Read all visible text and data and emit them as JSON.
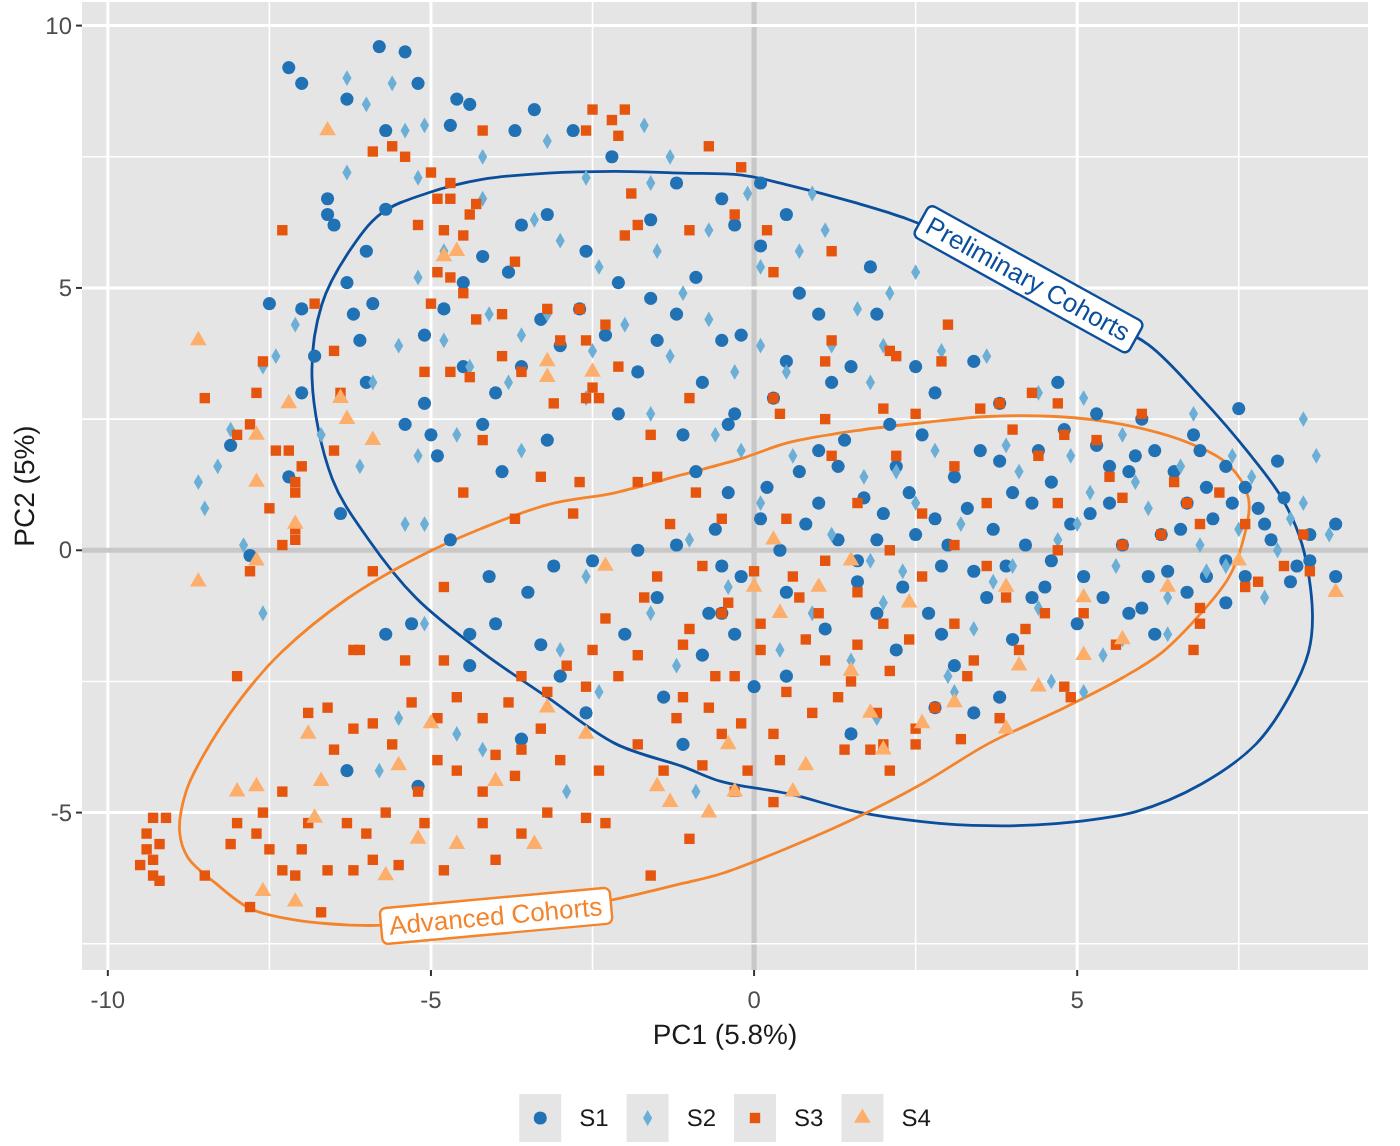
{
  "chart_data": {
    "type": "scatter",
    "xlabel": "PC1 (5.8%)",
    "ylabel": "PC2 (5%)",
    "xlim": [
      -10.4,
      9.5
    ],
    "ylim": [
      -8.0,
      10.45
    ],
    "xticks": [
      -10,
      {
        "value": -7.5,
        "label": null
      },
      -5,
      {
        "value": -2.5,
        "label": null
      },
      0,
      {
        "value": 2.5,
        "label": null
      },
      5,
      {
        "value": 7.5,
        "label": null
      }
    ],
    "yticks": [
      {
        "value": -7.5,
        "label": null
      },
      -5,
      {
        "value": -2.5,
        "label": null
      },
      0,
      {
        "value": 2.5,
        "label": null
      },
      5,
      {
        "value": 7.5,
        "label": null
      },
      10
    ],
    "grid": true,
    "legend": "bottom",
    "series": [
      {
        "name": "S1",
        "marker": "circle",
        "color": "#2171b5",
        "x": [
          -7.2,
          -7.0,
          -5.8,
          -5.4,
          -5.2,
          -6.3,
          -4.6,
          -4.4,
          -3.4,
          -4.7,
          -3.7,
          -2.8,
          -5.7,
          -6.6,
          -6.6,
          -6.5,
          -6.0,
          -5.7,
          -7.5,
          -7.0,
          -6.2,
          -5.9,
          -6.0,
          -6.1,
          -6.8,
          -8.1,
          -7.2,
          -7.0,
          -6.3,
          -5.0,
          -5.4,
          -5.1,
          -4.9,
          -4.2,
          -3.9,
          -5.1,
          -4.8,
          -4.5,
          -4.0,
          -3.6,
          -3.3,
          -3.0,
          -2.7,
          -2.3,
          -1.8,
          -1.5,
          -1.2,
          -0.8,
          -0.5,
          -0.4,
          -1.1,
          -2.1,
          -3.2,
          -3.6,
          -3.2,
          -2.2,
          -1.6,
          -1.2,
          -0.9,
          -0.5,
          -0.3,
          -4.2,
          -3.8,
          -2.6,
          -2.1,
          -1.6,
          -4.5,
          0.1,
          0.5,
          0.1,
          1.8,
          1.0,
          1.9,
          1.5,
          2.5,
          3.4,
          4.7,
          6.0,
          7.5,
          6.8,
          8.1,
          0.5,
          -0.3,
          0.3,
          1.2,
          2.8,
          3.8,
          5.3,
          6.2,
          2.1,
          0.7,
          -0.2,
          9.0,
          9.0,
          8.6,
          8.3,
          7.3,
          7.0,
          5.8,
          6.2,
          3.8,
          3.4,
          2.8,
          1.5,
          0.5,
          -0.5,
          -6.4,
          -7.8,
          -4.7,
          -5.7,
          -5.3,
          -4.1,
          -3.5,
          -3.1,
          -2.5,
          -1.8,
          -4.4,
          -4.0,
          -3.3,
          -3.0,
          -6.3,
          -5.2,
          -2.0,
          -1.4,
          -1.1,
          -2.6,
          -3.6,
          -0.7,
          -0.5,
          -4.4,
          0.2,
          0.8,
          1.3,
          1.9,
          2.4,
          2.9,
          3.3,
          3.8,
          4.2,
          4.6,
          5.1,
          5.5,
          5.9,
          6.3,
          6.7,
          7.1,
          7.6,
          8.0,
          8.4,
          -0.6,
          -0.9,
          0.5,
          1.1,
          1.6,
          2.2,
          2.7,
          3.1,
          3.6,
          4.0,
          4.5,
          5.0,
          5.3,
          6.0,
          6.5,
          7.3,
          -0.3,
          0.0,
          1.4,
          2.6,
          3.5,
          -1.5,
          -0.8,
          7.8,
          6.9,
          4.8,
          2.0,
          3.0,
          4.3,
          5.7,
          1.0,
          0.4,
          1.0,
          1.6,
          2.2,
          2.8,
          3.4,
          4.0,
          4.6,
          5.2,
          5.8,
          6.4,
          7.0,
          7.6,
          8.2,
          0.7,
          1.3,
          1.9,
          2.5,
          3.1,
          3.7,
          4.3,
          4.9,
          5.5,
          6.1,
          6.7,
          7.3,
          7.9,
          -0.2,
          0.1,
          1.7,
          2.3,
          3.9,
          4.4,
          5.4,
          6.6,
          7.4,
          8.6,
          -1.2,
          -0.4,
          2.9
        ],
        "values": [
          9.2,
          8.9,
          9.6,
          9.5,
          8.9,
          8.6,
          8.6,
          8.5,
          8.4,
          8.1,
          8.0,
          8.0,
          8.0,
          6.7,
          6.4,
          6.2,
          5.7,
          6.5,
          4.7,
          4.6,
          4.5,
          4.7,
          3.2,
          4.0,
          3.7,
          2.0,
          1.4,
          3.0,
          5.1,
          2.2,
          2.4,
          2.8,
          1.8,
          2.4,
          1.5,
          4.1,
          4.6,
          3.5,
          3.0,
          3.5,
          4.4,
          3.9,
          4.6,
          4.1,
          3.4,
          4.0,
          4.5,
          3.2,
          4.0,
          2.4,
          2.2,
          2.6,
          2.1,
          6.2,
          6.4,
          7.5,
          6.3,
          7.0,
          5.2,
          6.7,
          6.2,
          5.6,
          5.3,
          5.7,
          5.1,
          4.8,
          5.1,
          7.0,
          6.4,
          5.8,
          5.4,
          4.5,
          4.5,
          3.5,
          3.5,
          3.6,
          3.2,
          2.5,
          2.7,
          2.2,
          1.7,
          3.6,
          2.6,
          2.9,
          3.2,
          3.0,
          2.8,
          2.6,
          1.9,
          2.4,
          4.9,
          4.1,
          0.5,
          -0.5,
          -0.2,
          -0.6,
          -1.0,
          -0.5,
          -1.2,
          -1.6,
          -2.8,
          -3.1,
          -3.0,
          -3.5,
          -2.4,
          -1.2,
          0.7,
          -0.1,
          0.2,
          -1.6,
          -1.4,
          -0.5,
          -0.8,
          -0.3,
          -0.2,
          0.0,
          -2.2,
          -1.4,
          -1.8,
          -2.4,
          -4.2,
          -4.5,
          -1.6,
          -2.8,
          -3.7,
          -3.1,
          -3.6,
          -1.2,
          -0.3,
          -1.6,
          1.2,
          0.5,
          1.6,
          0.2,
          1.1,
          -0.3,
          0.8,
          1.7,
          0.1,
          1.3,
          -0.5,
          0.9,
          1.8,
          0.3,
          -0.8,
          0.6,
          1.2,
          0.2,
          -0.3,
          0.4,
          1.5,
          -0.8,
          -1.5,
          -0.6,
          -1.9,
          -1.2,
          -2.2,
          -0.9,
          -1.7,
          -0.7,
          -1.4,
          2.0,
          -1.1,
          1.5,
          -0.2,
          -1.6,
          -2.6,
          2.1,
          2.2,
          1.9,
          -0.9,
          -2.0,
          0.8,
          1.9,
          2.3,
          0.7,
          0.1,
          0.9,
          0.1,
          0.9,
          0.0,
          1.9,
          -0.2,
          1.6,
          0.6,
          -0.4,
          1.1,
          -0.2,
          0.7,
          1.5,
          -0.4,
          1.2,
          -0.5,
          1.0,
          1.5,
          0.2,
          -1.2,
          0.3,
          1.4,
          0.4,
          -0.9,
          0.5,
          1.6,
          -0.5,
          0.9,
          1.6,
          0.5,
          -0.5,
          0.6,
          1.0,
          -0.7,
          -0.3,
          1.9,
          -0.9,
          0.4,
          0.9,
          0.3,
          0.1,
          1.1,
          -1.6
        ]
      },
      {
        "name": "S2",
        "marker": "diamond",
        "color": "#6baed6",
        "x": [
          -6.3,
          -5.6,
          -6.0,
          -5.4,
          -5.1,
          -6.3,
          -8.6,
          -8.3,
          -8.1,
          -7.4,
          -7.1,
          -5.2,
          -4.2,
          -3.2,
          -1.7,
          -1.3,
          -2.6,
          -1.6,
          -4.2,
          -3.4,
          -3.0,
          -2.4,
          -1.5,
          -0.7,
          -1.1,
          -4.8,
          -5.2,
          -5.5,
          -4.8,
          -4.1,
          -3.6,
          -3.2,
          -2.5,
          -2.0,
          -1.3,
          -0.7,
          -0.3,
          -4.4,
          -3.8,
          -2.6,
          -1.6,
          -0.6,
          -4.6,
          -3.6,
          -5.2,
          -5.9,
          -6.7,
          -6.1,
          -7.6,
          -8.5,
          -7.9,
          -7.6,
          -5.4,
          -5.1,
          -5.1,
          -5.5,
          -5.8,
          -4.6,
          -4.2,
          -3.0,
          -2.6,
          -2.4,
          -1.6,
          -1.2,
          -0.9,
          -2.9,
          -0.1,
          0.9,
          1.1,
          0.1,
          0.7,
          1.6,
          2.5,
          2.1,
          2.9,
          3.6,
          4.4,
          5.1,
          5.7,
          6.8,
          7.4,
          8.7,
          8.5,
          0.5,
          1.8,
          0.1,
          1.2,
          2.0,
          8.9,
          8.5,
          8.1,
          5.1,
          4.6,
          3.1,
          1.9,
          6.4,
          5.7,
          7.3,
          0.1,
          0.6,
          1.2,
          1.7,
          2.3,
          2.8,
          3.2,
          3.7,
          4.1,
          4.7,
          5.2,
          5.6,
          6.1,
          6.6,
          7.0,
          7.5,
          7.9,
          8.3,
          -0.4,
          0.9,
          1.5,
          2.0,
          2.5,
          3.4,
          3.9,
          4.4,
          4.9,
          5.4,
          5.9,
          6.4,
          6.9,
          7.7,
          -1.0,
          -0.2,
          1.8,
          3.0,
          4.0,
          2.2,
          0.4,
          5.0
        ],
        "values": [
          9.0,
          8.9,
          8.5,
          8.0,
          8.1,
          7.2,
          1.3,
          1.6,
          2.3,
          3.7,
          4.3,
          7.1,
          7.5,
          7.8,
          8.1,
          7.5,
          7.1,
          7.0,
          6.7,
          6.3,
          5.9,
          5.4,
          5.7,
          6.1,
          4.9,
          5.7,
          5.2,
          3.9,
          4.0,
          4.5,
          4.1,
          4.5,
          3.8,
          4.3,
          3.7,
          4.4,
          3.4,
          3.5,
          3.2,
          2.9,
          2.6,
          2.2,
          2.2,
          1.9,
          1.8,
          3.2,
          2.2,
          1.6,
          3.5,
          0.8,
          0.1,
          -1.2,
          0.5,
          0.5,
          -1.4,
          -3.2,
          -4.2,
          -3.5,
          -3.8,
          -1.9,
          -0.5,
          -2.7,
          -1.2,
          -2.2,
          -4.6,
          -4.6,
          6.8,
          6.8,
          6.1,
          5.4,
          5.7,
          4.6,
          5.3,
          4.9,
          3.8,
          3.7,
          3.0,
          2.9,
          2.2,
          2.6,
          1.8,
          1.8,
          2.5,
          3.4,
          3.2,
          3.9,
          3.9,
          3.9,
          0.3,
          0.9,
          0.0,
          -2.7,
          -2.5,
          -2.7,
          -3.2,
          -1.6,
          -1.7,
          -0.3,
          0.9,
          1.8,
          0.3,
          1.4,
          -0.4,
          1.9,
          0.5,
          -0.6,
          1.5,
          0.2,
          1.1,
          -0.3,
          0.8,
          1.6,
          -0.4,
          0.4,
          -0.9,
          0.6,
          -0.7,
          -1.2,
          -2.1,
          -1.0,
          0.9,
          -1.5,
          2.0,
          -1.1,
          1.8,
          -2.0,
          1.3,
          -0.9,
          0.1,
          1.4,
          0.2,
          1.9,
          -0.2,
          -2.4,
          -0.3,
          1.5,
          -1.9,
          0.5
        ]
      },
      {
        "name": "S3",
        "marker": "square",
        "color": "#e6550d",
        "x": [
          -2.5,
          -2.0,
          -2.2,
          -2.1,
          -0.7,
          -2.6,
          -4.2,
          -5.9,
          -5.6,
          -5.4,
          -5.0,
          -4.7,
          -4.9,
          -4.7,
          -4.3,
          -4.4,
          -4.8,
          -4.5,
          -5.2,
          -7.3,
          -1.9,
          -1.8,
          -2.0,
          -1.0,
          -3.7,
          -4.9,
          -4.7,
          -4.5,
          -5.0,
          -6.8,
          -4.3,
          -3.9,
          -3.2,
          -2.7,
          -2.3,
          -3.0,
          -2.6,
          -2.1,
          -3.9,
          -3.6,
          -5.1,
          -4.7,
          -4.4,
          -6.5,
          -7.6,
          -6.4,
          -7.7,
          -8.5,
          -7.8,
          -8.0,
          -7.4,
          -7.2,
          -6.5,
          -7.0,
          -7.1,
          -7.1,
          -4.2,
          -3.1,
          -2.6,
          -2.4,
          -2.5,
          -1.6,
          -3.3,
          -2.7,
          -1.0,
          -1.8,
          -1.5,
          -0.9,
          -4.5,
          -0.2,
          -0.3,
          0.2,
          0.3,
          1.2,
          3.0,
          1.2,
          1.1,
          2.9,
          0.3,
          0.4,
          1.1,
          2.0,
          2.1,
          2.2,
          2.5,
          3.5,
          3.8,
          4.3,
          4.7,
          4.8,
          4.0,
          6.0,
          2.2,
          3.1,
          1.2,
          4.4,
          5.3,
          6.5,
          7.2,
          5.5,
          -7.5,
          -7.8,
          -8.0,
          -5.9,
          -7.3,
          -7.1,
          -7.1,
          -6.2,
          -6.1,
          -5.4,
          -4.8,
          -4.8,
          -3.7,
          -2.8,
          -6.9,
          -6.6,
          -6.2,
          -5.9,
          -5.6,
          -6.5,
          -5.3,
          -4.9,
          -4.6,
          -4.2,
          -3.8,
          -3.6,
          -3.2,
          -2.9,
          -2.5,
          -2.3,
          -1.7,
          -1.5,
          -1.3,
          -2.1,
          -1.8,
          -1.4,
          -2.4,
          -3.0,
          -3.7,
          -4.2,
          -4.6,
          -5.2,
          -5.7,
          -6.0,
          -5.9,
          -5.5,
          -6.2,
          -6.3,
          -6.9,
          -7.3,
          -7.6,
          -7.7,
          -7.5,
          -7.3,
          -7.0,
          -7.1,
          -6.6,
          -6.7,
          -7.8,
          -8.1,
          -8.0,
          -8.5,
          -9.1,
          -9.3,
          -9.4,
          -9.4,
          -9.5,
          -9.3,
          -9.2,
          -9.2,
          -9.3,
          -4.0,
          -3.6,
          -3.2,
          -2.6,
          -2.3,
          -1.6,
          -1.0,
          -4.8,
          -4.2,
          -5.1,
          -0.8,
          -0.5,
          -1.1,
          -0.6,
          -1.1,
          -0.5,
          -0.8,
          -0.5,
          0.3,
          -0.3,
          -0.1,
          0.4,
          1.4,
          1.8,
          2.1,
          2.0,
          2.5,
          3.2,
          2.5,
          2.8,
          3.8,
          4.9,
          4.8,
          5.6,
          6.8,
          6.9,
          6.9,
          7.6,
          7.8,
          8.2,
          8.6,
          8.5,
          7.6,
          6.9,
          6.3,
          5.1,
          4.5,
          3.9,
          3.1,
          2.4,
          1.6,
          0.8,
          0.1,
          -0.3,
          0.5,
          1.3,
          0.1,
          0.7,
          1.6,
          2.6,
          3.6,
          4.7,
          5.7,
          3.1,
          2.1,
          1.1,
          0.0,
          0.5,
          1.6,
          2.6,
          3.6,
          4.7,
          5.7,
          6.7,
          1.1,
          2.1,
          4.1,
          3.4,
          -1.8,
          -1.2,
          -0.7,
          -0.2,
          0.3,
          0.9,
          1.5,
          2.0,
          0.6,
          -0.4,
          -1.0,
          -2.6,
          -3.3,
          -4.0,
          -4.9,
          -3.6,
          1.0,
          1.9,
          3.3,
          4.2
        ],
        "values": [
          8.4,
          8.4,
          8.2,
          7.9,
          7.7,
          8.0,
          8.0,
          7.6,
          7.7,
          7.5,
          7.2,
          7.0,
          6.7,
          6.7,
          6.6,
          6.4,
          6.1,
          6.0,
          6.2,
          6.1,
          6.8,
          6.2,
          6.0,
          6.1,
          5.5,
          5.3,
          5.2,
          4.9,
          4.7,
          4.7,
          4.4,
          4.5,
          4.6,
          4.6,
          4.3,
          4.0,
          4.0,
          3.5,
          3.7,
          3.4,
          3.4,
          3.4,
          3.3,
          3.8,
          3.6,
          3.0,
          3.0,
          2.9,
          2.4,
          2.2,
          1.9,
          1.9,
          1.9,
          1.6,
          1.3,
          1.1,
          2.1,
          2.8,
          2.9,
          2.9,
          3.1,
          2.2,
          1.4,
          1.3,
          2.9,
          1.3,
          1.4,
          1.1,
          1.1,
          7.3,
          6.4,
          6.1,
          5.3,
          5.7,
          4.3,
          4.0,
          3.6,
          3.6,
          2.9,
          2.6,
          2.5,
          2.7,
          3.8,
          3.7,
          2.6,
          2.7,
          2.8,
          3.0,
          2.8,
          2.2,
          2.3,
          2.6,
          1.8,
          1.6,
          1.8,
          1.8,
          2.1,
          1.3,
          1.1,
          1.4,
          0.8,
          -0.4,
          -2.4,
          -0.4,
          0.1,
          0.2,
          0.4,
          -1.9,
          -1.9,
          -2.1,
          -0.7,
          -2.1,
          0.6,
          0.7,
          -3.1,
          -3.0,
          -3.4,
          -3.3,
          -3.7,
          -3.8,
          -2.9,
          -3.2,
          -2.8,
          -3.2,
          -2.9,
          -2.4,
          -2.7,
          -2.2,
          -1.9,
          -1.3,
          -0.9,
          -0.5,
          0.5,
          -2.4,
          -3.7,
          -4.2,
          -4.2,
          -4.0,
          -4.3,
          -4.6,
          -4.2,
          -4.6,
          -5.0,
          -5.4,
          -5.9,
          -6.0,
          -6.1,
          -5.2,
          -5.2,
          -4.6,
          -5.0,
          -5.4,
          -5.7,
          -6.1,
          -5.7,
          -6.2,
          -6.1,
          -6.9,
          -6.8,
          -5.6,
          -5.2,
          -6.2,
          -5.1,
          -5.1,
          -5.4,
          -5.7,
          -6.0,
          -6.2,
          -6.3,
          -5.6,
          -5.9,
          -5.9,
          -5.4,
          -5.0,
          -5.1,
          -5.2,
          -6.2,
          -5.5,
          -6.1,
          -5.2,
          -5.2,
          -4.1,
          -3.5,
          -2.8,
          -2.4,
          -1.8,
          -1.2,
          -0.3,
          0.6,
          -4.8,
          -4.6,
          -4.2,
          -4.0,
          -3.8,
          -3.8,
          -4.2,
          -3.7,
          -3.7,
          -3.6,
          -3.4,
          -3.0,
          -3.2,
          -2.8,
          -2.6,
          -1.8,
          -1.9,
          -1.4,
          -1.1,
          -0.7,
          -0.6,
          -0.3,
          -0.4,
          0.3,
          0.5,
          0.5,
          0.3,
          -1.2,
          -1.2,
          -0.9,
          -1.4,
          -1.7,
          -1.8,
          -1.7,
          -1.9,
          -2.4,
          -2.7,
          -2.8,
          -1.4,
          -0.9,
          -0.8,
          -0.5,
          -0.3,
          0.0,
          0.1,
          0.1,
          0.0,
          -0.2,
          -0.4,
          0.6,
          0.9,
          0.7,
          0.9,
          0.9,
          1.0,
          0.9,
          -2.1,
          -2.3,
          -1.9,
          -2.1,
          -2.0,
          -3.2,
          -3.0,
          -3.3,
          -3.5,
          -3.1,
          -2.5,
          -1.4,
          -0.5,
          -1.0,
          -1.5,
          -2.6,
          -3.4,
          -3.9,
          -4.0,
          -3.8,
          -1.2,
          -3.1,
          -2.4,
          -1.5
        ]
      },
      {
        "name": "S4",
        "marker": "triangle",
        "color": "#fdae6b",
        "x": [
          -6.6,
          -8.6,
          -4.8,
          -4.6,
          -7.2,
          -6.4,
          -6.3,
          -7.7,
          -5.9,
          -7.7,
          -3.2,
          -3.2,
          -2.5,
          -8.6,
          -7.7,
          -7.1,
          -6.9,
          -8.0,
          -7.7,
          -6.8,
          -7.1,
          -7.6,
          -6.7,
          -5.7,
          -5.0,
          -5.5,
          -5.2,
          -4.6,
          -3.4,
          -4.0,
          -3.2,
          -1.3,
          -0.7,
          -0.4,
          -2.3,
          -1.5,
          -2.6,
          9.0,
          7.5,
          5.1,
          5.7,
          4.4,
          4.1,
          3.1,
          2.6,
          3.9,
          2.0,
          0.8,
          0.6,
          -0.3,
          1.8,
          1.5,
          0.4,
          0.0,
          1.0,
          2.4,
          3.9,
          5.1,
          6.4,
          1.5,
          0.3
        ],
        "values": [
          8.0,
          4.0,
          5.6,
          5.7,
          2.8,
          2.9,
          2.5,
          2.2,
          2.1,
          1.3,
          3.6,
          3.3,
          3.4,
          -0.6,
          -0.2,
          0.5,
          -3.5,
          -4.6,
          -4.5,
          -5.1,
          -6.7,
          -6.5,
          -4.4,
          -6.2,
          -3.3,
          -4.1,
          -5.5,
          -5.6,
          -5.6,
          -4.4,
          -3.0,
          -4.8,
          -5.0,
          -3.7,
          -0.3,
          -4.5,
          -3.5,
          -0.8,
          -0.2,
          -2.0,
          -1.7,
          -2.6,
          -2.2,
          -2.9,
          -3.3,
          -3.4,
          -3.8,
          -4.1,
          -4.6,
          -4.6,
          -3.1,
          -2.3,
          -1.2,
          -0.7,
          -0.7,
          -1.0,
          -0.7,
          -0.9,
          -0.7,
          -0.2,
          0.2
        ]
      }
    ],
    "annotations": [
      "Preliminary Cohorts",
      "Advanced Cohorts"
    ]
  }
}
